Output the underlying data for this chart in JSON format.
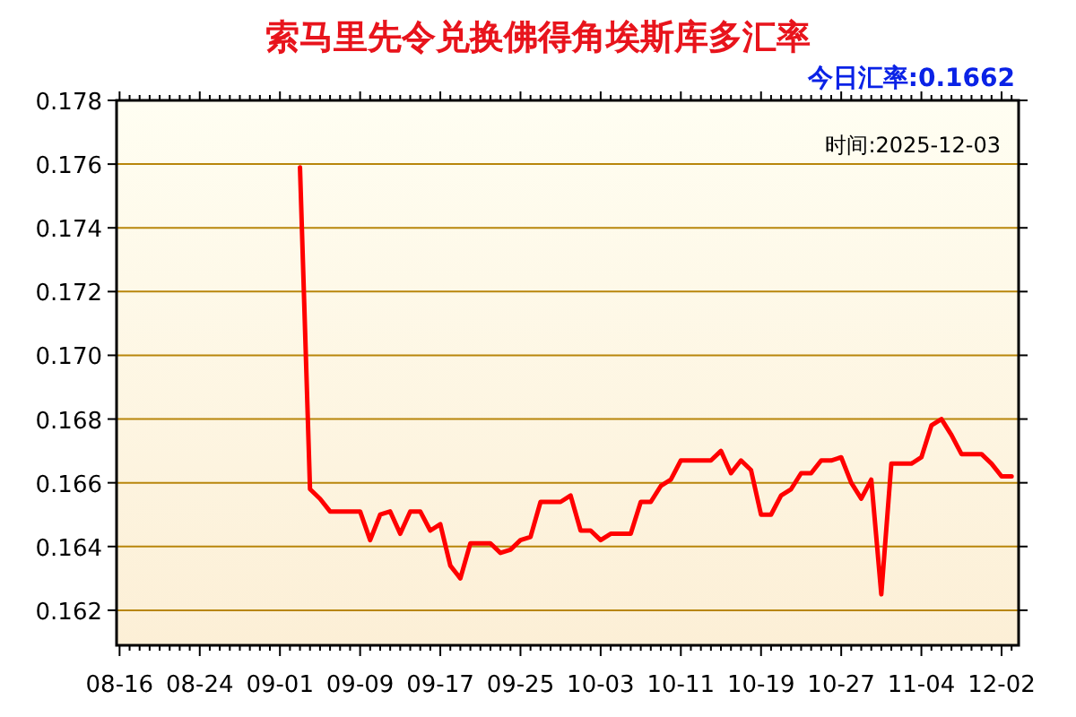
{
  "chart_data": {
    "type": "line",
    "title": "索马里先令兑换佛得角埃斯库多汇率",
    "annotations": [
      "今日汇率:0.1662",
      "时间:2025-12-03"
    ],
    "categories": [
      "08-16",
      null,
      null,
      null,
      null,
      null,
      null,
      null,
      "08-24",
      null,
      null,
      null,
      null,
      null,
      null,
      null,
      "09-01",
      null,
      null,
      null,
      null,
      null,
      null,
      null,
      "09-09",
      null,
      null,
      null,
      null,
      null,
      null,
      null,
      "09-17",
      null,
      null,
      null,
      null,
      null,
      null,
      null,
      "09-25",
      null,
      null,
      null,
      null,
      null,
      null,
      null,
      "10-03",
      null,
      null,
      null,
      null,
      null,
      null,
      null,
      "10-11",
      null,
      null,
      null,
      null,
      null,
      null,
      null,
      "10-19",
      null,
      null,
      null,
      null,
      null,
      null,
      null,
      "10-27",
      null,
      null,
      null,
      null,
      null,
      null,
      null,
      "11-04",
      null,
      null,
      null,
      null,
      null,
      null,
      null,
      "12-02",
      null
    ],
    "series": [
      {
        "color": "#ff0000",
        "values": [
          null,
          null,
          null,
          null,
          null,
          null,
          null,
          null,
          null,
          null,
          null,
          null,
          null,
          null,
          null,
          null,
          null,
          null,
          0.1759,
          0.1658,
          0.1655,
          0.1651,
          0.1651,
          0.1651,
          0.1651,
          0.1642,
          0.165,
          0.1651,
          0.1644,
          0.1651,
          0.1651,
          0.1645,
          0.1647,
          0.1634,
          0.163,
          0.1641,
          0.1641,
          0.1641,
          0.1638,
          0.1639,
          0.1642,
          0.1643,
          0.1654,
          0.1654,
          0.1654,
          0.1656,
          0.1645,
          0.1645,
          0.1642,
          0.1644,
          0.1644,
          0.1644,
          0.1654,
          0.1654,
          0.1659,
          0.1661,
          0.1667,
          0.1667,
          0.1667,
          0.1667,
          0.167,
          0.1663,
          0.1667,
          0.1664,
          0.165,
          0.165,
          0.1656,
          0.1658,
          0.1663,
          0.1663,
          0.1667,
          0.1667,
          0.1668,
          0.166,
          0.1655,
          0.1661,
          0.1625,
          0.1666,
          0.1666,
          0.1666,
          0.1668,
          0.1678,
          0.168,
          0.1675,
          0.1669,
          0.1669,
          0.1669,
          0.1666,
          0.1662,
          0.1662
        ]
      }
    ],
    "ylim": [
      0.1609,
      0.178
    ],
    "yticks": [
      0.162,
      0.164,
      0.166,
      0.168,
      {
        "value": 0.17,
        "label": "0.170"
      },
      0.172,
      0.174,
      0.176,
      0.178
    ],
    "grid": "y",
    "line_style": "solid",
    "marker": "none"
  }
}
